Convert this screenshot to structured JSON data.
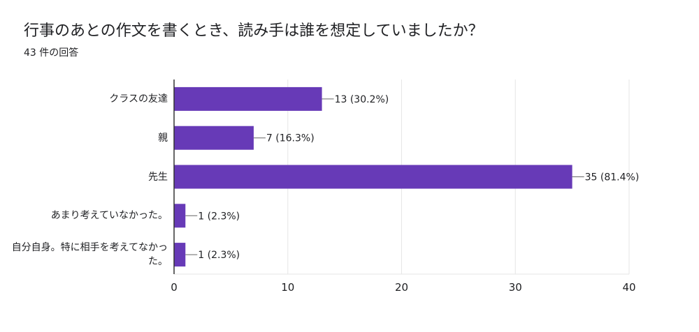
{
  "title": "行事のあとの作文を書くとき、読み手は誰を想定していましたか？",
  "subtitle": "43 件の回答",
  "colors": {
    "bar": "#673ab7",
    "grid": "#e6e6e6",
    "axis": "#333333",
    "text": "#202124"
  },
  "chart_data": {
    "type": "bar",
    "orientation": "horizontal",
    "title": "行事のあとの作文を書くとき、読み手は誰を想定していましたか？",
    "subtitle": "43 件の回答",
    "categories": [
      "クラスの友達",
      "親",
      "先生",
      "あまり考えていなかった。",
      "自分自身。特に相手を考えてなかった。"
    ],
    "values": [
      13,
      7,
      35,
      1,
      1
    ],
    "data_labels": [
      "13 (30.2%)",
      "7 (16.3%)",
      "35 (81.4%)",
      "1 (2.3%)",
      "1 (2.3%)"
    ],
    "xlim": [
      0,
      40
    ],
    "x_ticks": [
      0,
      10,
      20,
      30,
      40
    ],
    "x_tick_labels": [
      "0",
      "10",
      "20",
      "30",
      "40"
    ],
    "xlabel": "",
    "ylabel": "",
    "grid": true,
    "legend": "none"
  }
}
